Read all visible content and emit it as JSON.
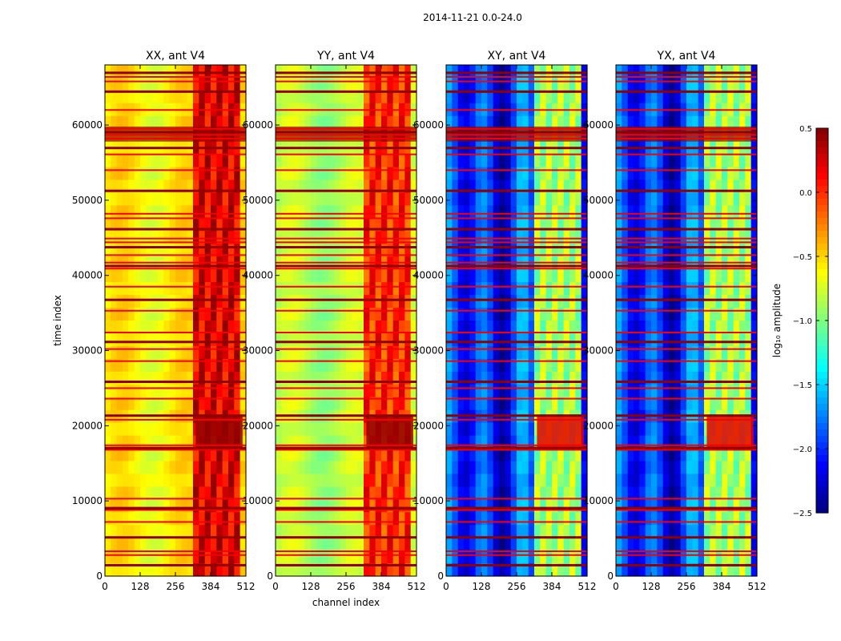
{
  "suptitle": "2014-11-21 0.0-24.0",
  "colormap": [
    "#00007f",
    "#0000ff",
    "#007fff",
    "#00ffff",
    "#7fff7f",
    "#ffff00",
    "#ff7f00",
    "#ff0000",
    "#7f0000"
  ],
  "chart_data": [
    {
      "type": "heatmap",
      "title": "XX, ant V4",
      "xlabel": "",
      "ylabel": "time index",
      "xlim": [
        0,
        512
      ],
      "ylim": [
        0,
        68000
      ],
      "xticks": [
        "0",
        "128",
        "256",
        "384",
        "512"
      ],
      "yticks": [
        "0",
        "10000",
        "20000",
        "30000",
        "40000",
        "50000",
        "60000"
      ],
      "base_level": -0.6,
      "band_level": 0.2,
      "burst_level": 0.45
    },
    {
      "type": "heatmap",
      "title": "YY, ant V4",
      "xlabel": "channel index",
      "ylabel": "",
      "xlim": [
        0,
        512
      ],
      "ylim": [
        0,
        68000
      ],
      "xticks": [
        "0",
        "128",
        "256",
        "384",
        "512"
      ],
      "yticks": [
        "0",
        "10000",
        "20000",
        "30000",
        "40000",
        "50000",
        "60000"
      ],
      "base_level": -0.85,
      "band_level": 0.0,
      "burst_level": 0.45
    },
    {
      "type": "heatmap",
      "title": "XY, ant V4",
      "xlabel": "",
      "ylabel": "",
      "xlim": [
        0,
        512
      ],
      "ylim": [
        0,
        68000
      ],
      "xticks": [
        "0",
        "128",
        "256",
        "384",
        "512"
      ],
      "yticks": [
        "0",
        "10000",
        "20000",
        "30000",
        "40000",
        "50000",
        "60000"
      ],
      "base_level": -2.0,
      "band_level": -0.9,
      "burst_level": 0.2
    },
    {
      "type": "heatmap",
      "title": "YX, ant V4",
      "xlabel": "",
      "ylabel": "",
      "xlim": [
        0,
        512
      ],
      "ylim": [
        0,
        68000
      ],
      "xticks": [
        "0",
        "128",
        "256",
        "384",
        "512"
      ],
      "yticks": [
        "0",
        "10000",
        "20000",
        "30000",
        "40000",
        "50000",
        "60000"
      ],
      "base_level": -2.0,
      "band_level": -0.9,
      "burst_level": 0.2
    }
  ],
  "common": {
    "rfi_rows": [
      1500,
      2800,
      3300,
      5200,
      7200,
      8800,
      9100,
      10300,
      16800,
      17100,
      17400,
      20800,
      21400,
      23600,
      25000,
      25900,
      28600,
      30200,
      31200,
      32400,
      35300,
      36800,
      38500,
      40900,
      41300,
      41700,
      42700,
      43800,
      44400,
      44900,
      46200,
      47600,
      48200,
      51300,
      54000,
      56100,
      57000,
      58200,
      58700,
      59100,
      59500,
      62000,
      64500,
      65800,
      66400,
      67000
    ],
    "bright_band": [
      330,
      500
    ],
    "burst_range": [
      17000,
      21500
    ],
    "flare_range": [
      57800,
      59800
    ]
  },
  "colorbar": {
    "label": "log₁₀ amplitude",
    "vmin": -2.5,
    "vmax": 0.5,
    "ticks": [
      "0.5",
      "0.0",
      "−0.5",
      "−1.0",
      "−1.5",
      "−2.0",
      "−2.5"
    ],
    "tick_values": [
      0.5,
      0.0,
      -0.5,
      -1.0,
      -1.5,
      -2.0,
      -2.5
    ]
  }
}
